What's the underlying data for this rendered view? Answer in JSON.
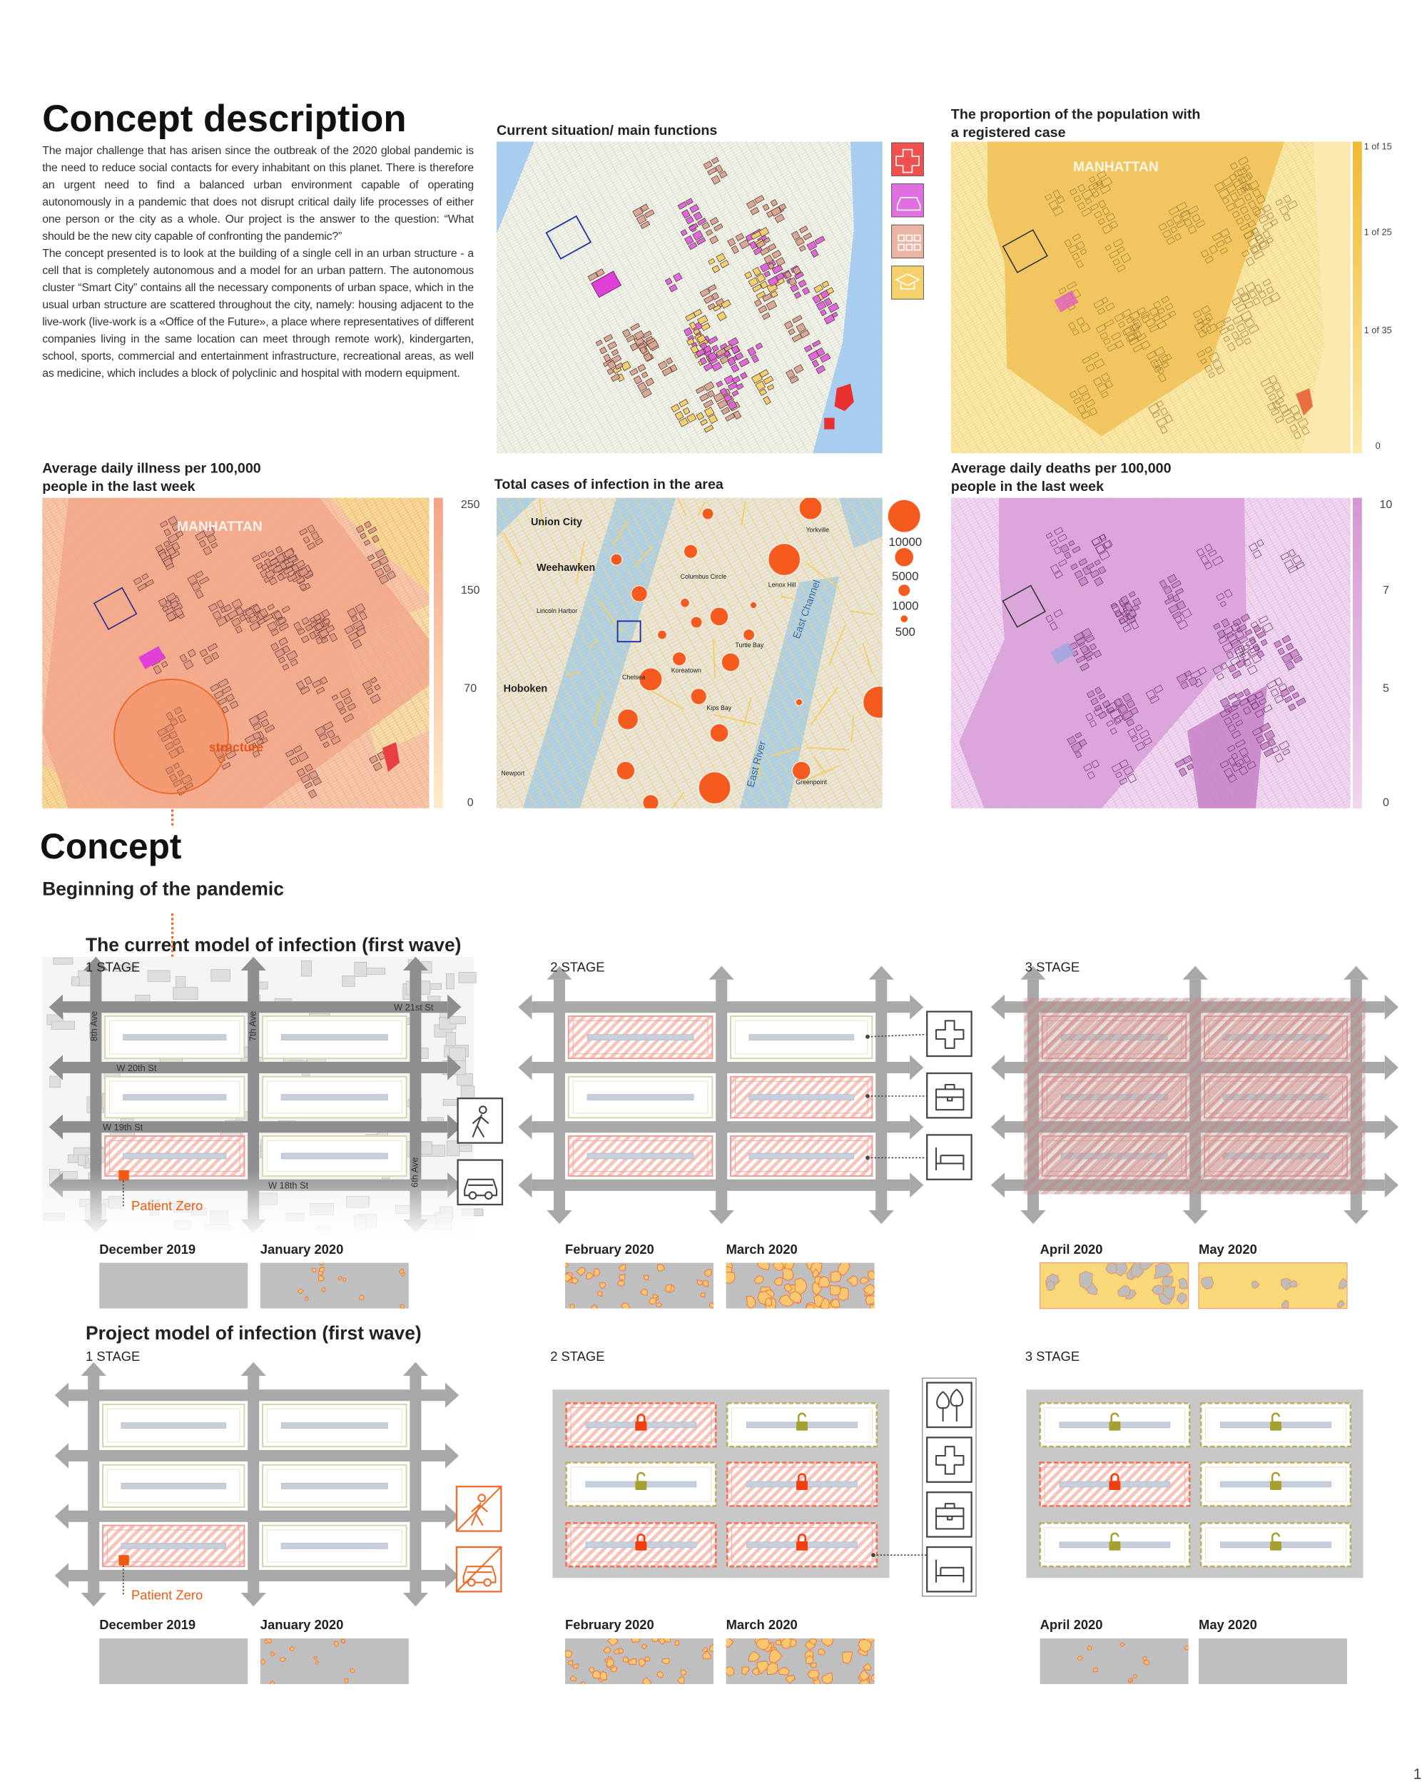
{
  "header": {
    "title": "Concept description",
    "paragraphs": [
      "The major challenge that has arisen since the outbreak of the 2020 global pandemic is the need to reduce social contacts for every inhabitant on this planet.  There is therefore an urgent need to find a balanced urban environment capable of operating autonomously in a pandemic that does not disrupt critical daily life processes of either one person or the city as a whole. Our project is the answer to the question: “What should be the new city capable of confronting the pandemic?”",
      "The concept presented is to look at the building of a single cell in an urban structure - a cell that is completely autonomous and a model for an urban pattern. The autonomous cluster “Smart City” contains all the necessary components of urban space, which in the usual urban structure are scattered throughout the city, namely: housing adjacent to the live-work (live-work is a «Office of the Future», a place where representatives of different companies living in the same location can meet through remote work), kindergarten, school, sports, commercial and entertainment infrastructure, recreational areas, as well as medicine, which includes a block of polyclinic and hospital with modern equipment."
    ]
  },
  "maps": [
    {
      "title": [
        "Current situation/ main functions"
      ]
    },
    {
      "title": [
        "The proportion of the population with",
        "a registered case"
      ],
      "labels": [
        "MANHATTAN"
      ],
      "scale": [
        "1 of 15",
        "1 of 25",
        "1 of 35",
        "0"
      ]
    },
    {
      "title": [
        "Average daily illness per 100,000",
        "people in the last week"
      ],
      "labels": [
        "MANHATTAN",
        "structure"
      ],
      "scale": [
        "250",
        "150",
        "70",
        "0"
      ]
    },
    {
      "title": [
        "Total cases of infection in the area"
      ],
      "labels": [
        "Union City",
        "Weehawken",
        "Hoboken",
        "Lincoln Harbor",
        "Columbus Circle",
        "Lenox Hill",
        "Yorkville",
        "Chelsea",
        "Koreatown",
        "Turtle Bay",
        "Kips Bay",
        "East Channel",
        "East River",
        "Greenpoint",
        "Newport"
      ],
      "legend": [
        "10000",
        "5000",
        "1000",
        "500"
      ]
    },
    {
      "title": [
        "Average daily deaths per 100,000",
        "people in the last week"
      ],
      "scale": [
        "10",
        "7",
        "5",
        "0"
      ]
    }
  ],
  "concept": {
    "title": "Concept",
    "subtitle": "Beginning of the pandemic",
    "current": {
      "title": "The current model of infection (first wave)",
      "stages": [
        "1 STAGE",
        "2 STAGE",
        "3 STAGE"
      ],
      "streets": [
        "8th Ave",
        "7th Ave",
        "6th Ave",
        "W 21st St",
        "W 20th St",
        "W 19th St",
        "W 18th St"
      ],
      "patient": "Patient Zero",
      "months": [
        "December 2019",
        "January 2020",
        "February 2020",
        "March 2020",
        "April 2020",
        "May 2020"
      ]
    },
    "project": {
      "title": "Project model of infection (first wave)",
      "stages": [
        "1 STAGE",
        "2 STAGE",
        "3 STAGE"
      ],
      "patient": "Patient Zero",
      "months": [
        "December 2019",
        "January 2020",
        "February 2020",
        "March 2020",
        "April 2020",
        "May 2020"
      ]
    }
  },
  "page_number": "1"
}
